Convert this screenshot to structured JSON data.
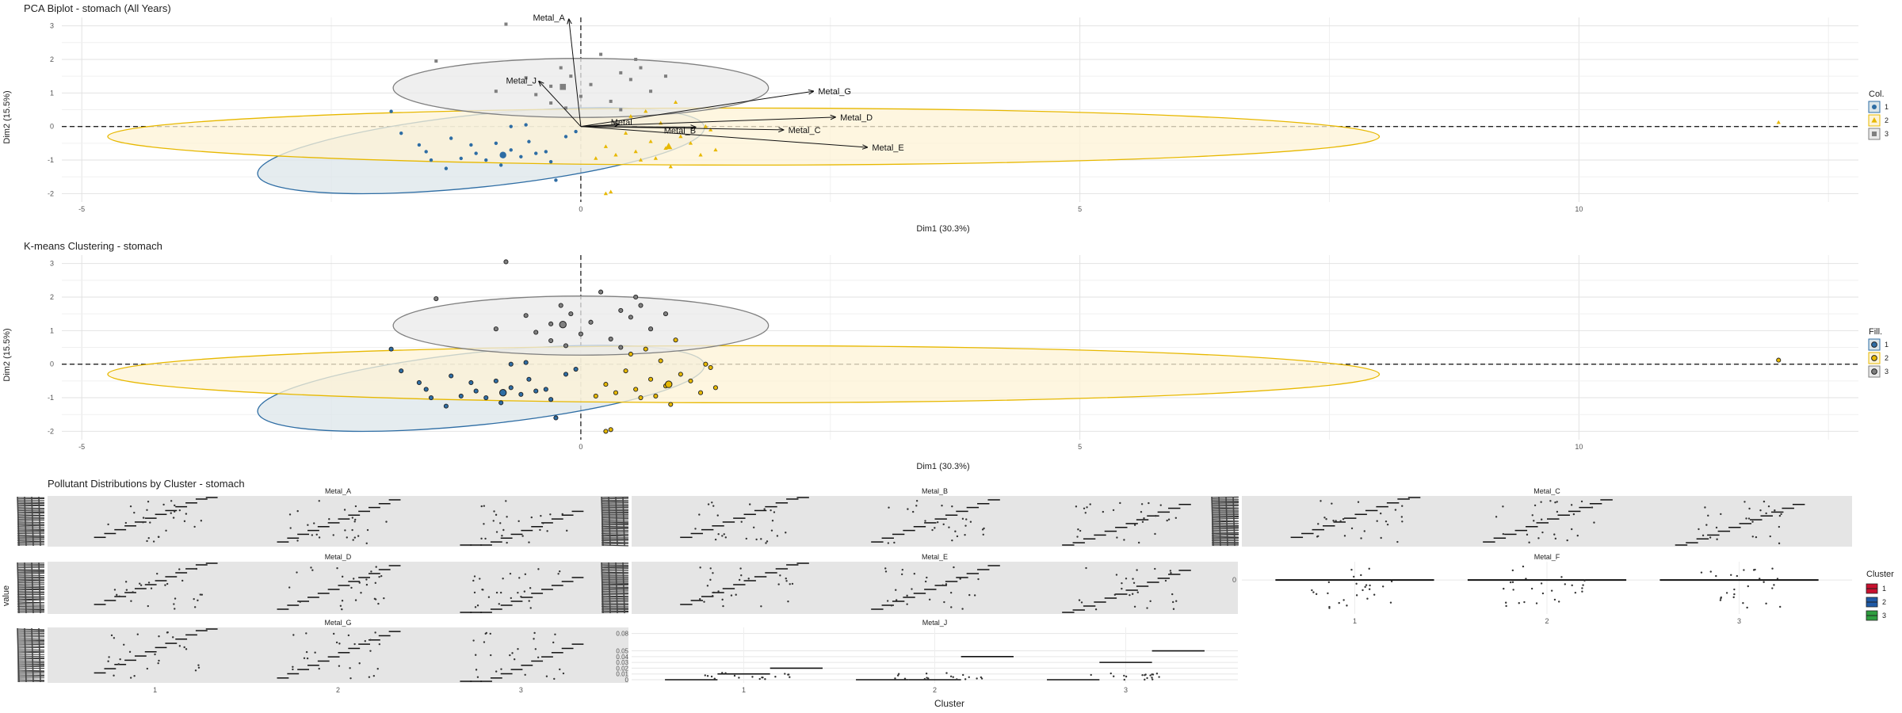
{
  "figure": {
    "colors": {
      "c1": "#2E6DA4",
      "c2": "#E7B800",
      "c3": "#7F7F7F",
      "c1_fill": "#DCE6EA",
      "c2_fill": "#FDF3D6",
      "c3_fill": "#EAEAEA",
      "box1": "#C8102E",
      "box2": "#1F5AA6",
      "box3": "#2E9E3F",
      "panel": "#E5E5E5"
    }
  },
  "chart_data": [
    {
      "type": "scatter",
      "title": "PCA Biplot - stomach (All Years)",
      "xlabel": "Dim1 (30.3%)",
      "ylabel": "Dim2 (15.5%)",
      "xlim": [
        -5.2,
        12.8
      ],
      "ylim": [
        -2.25,
        3.25
      ],
      "x_ticks": [
        -5,
        0,
        5,
        10
      ],
      "y_ticks": [
        -2,
        -1,
        0,
        1,
        2,
        3
      ],
      "legend": {
        "title": "Col.",
        "placement": "right",
        "entries": [
          "1",
          "2",
          "3"
        ],
        "shapes": [
          "circle",
          "triangle",
          "square"
        ]
      },
      "ellipses": [
        {
          "cluster": "1",
          "cx": -1.0,
          "cy": -0.72,
          "rx": 2.25,
          "ry": 1.08,
          "angle": -6
        },
        {
          "cluster": "2",
          "cx": 1.63,
          "cy": -0.3,
          "rx": 6.37,
          "ry": 0.85,
          "angle": 0
        },
        {
          "cluster": "3",
          "cx": 0.0,
          "cy": 1.15,
          "rx": 1.88,
          "ry": 0.88,
          "angle": 0
        }
      ],
      "centroids": [
        {
          "cluster": "1",
          "x": -0.78,
          "y": -0.85
        },
        {
          "cluster": "2",
          "x": 0.88,
          "y": -0.6
        },
        {
          "cluster": "3",
          "x": -0.18,
          "y": 1.18
        }
      ],
      "loadings": [
        {
          "label": "Metal_A",
          "x": -0.12,
          "y": 3.2
        },
        {
          "label": "Metal_J",
          "x": -0.42,
          "y": 1.35
        },
        {
          "label": "Metal_G",
          "x": 2.33,
          "y": 1.05
        },
        {
          "label": "Metal_D",
          "x": 2.55,
          "y": 0.28
        },
        {
          "label": "Metal_C",
          "x": 2.03,
          "y": -0.1
        },
        {
          "label": "Metal_E",
          "x": 2.87,
          "y": -0.62
        },
        {
          "label": "Metal_B",
          "x": 1.15,
          "y": -0.02
        },
        {
          "label": "Metal_",
          "x": 0.38,
          "y": 0.06
        }
      ],
      "points": [
        {
          "cluster": "1",
          "x": -1.9,
          "y": 0.45
        },
        {
          "cluster": "1",
          "x": -1.8,
          "y": -0.2
        },
        {
          "cluster": "1",
          "x": -1.55,
          "y": -0.75
        },
        {
          "cluster": "1",
          "x": -1.5,
          "y": -1.0
        },
        {
          "cluster": "1",
          "x": -1.35,
          "y": -1.25
        },
        {
          "cluster": "1",
          "x": -1.3,
          "y": -0.35
        },
        {
          "cluster": "1",
          "x": -1.2,
          "y": -0.95
        },
        {
          "cluster": "1",
          "x": -1.05,
          "y": -0.8
        },
        {
          "cluster": "1",
          "x": -0.95,
          "y": -1.0
        },
        {
          "cluster": "1",
          "x": -0.85,
          "y": -0.5
        },
        {
          "cluster": "1",
          "x": -0.8,
          "y": -1.15
        },
        {
          "cluster": "1",
          "x": -0.7,
          "y": -0.7
        },
        {
          "cluster": "1",
          "x": -0.6,
          "y": -0.9
        },
        {
          "cluster": "1",
          "x": -0.55,
          "y": 0.05
        },
        {
          "cluster": "1",
          "x": -0.45,
          "y": -0.8
        },
        {
          "cluster": "1",
          "x": -0.35,
          "y": -0.75
        },
        {
          "cluster": "1",
          "x": -0.25,
          "y": -1.6
        },
        {
          "cluster": "1",
          "x": -0.15,
          "y": -0.3
        },
        {
          "cluster": "1",
          "x": -0.05,
          "y": -0.15
        },
        {
          "cluster": "1",
          "x": -0.7,
          "y": 0.0
        },
        {
          "cluster": "1",
          "x": -1.1,
          "y": -0.55
        },
        {
          "cluster": "1",
          "x": -0.3,
          "y": -1.05
        },
        {
          "cluster": "1",
          "x": -1.62,
          "y": -0.55
        },
        {
          "cluster": "1",
          "x": -0.52,
          "y": -0.45
        },
        {
          "cluster": "2",
          "x": 0.15,
          "y": -0.95
        },
        {
          "cluster": "2",
          "x": 0.25,
          "y": -0.6
        },
        {
          "cluster": "2",
          "x": 0.35,
          "y": -0.85
        },
        {
          "cluster": "2",
          "x": 0.45,
          "y": -0.2
        },
        {
          "cluster": "2",
          "x": 0.5,
          "y": 0.3
        },
        {
          "cluster": "2",
          "x": 0.55,
          "y": -0.75
        },
        {
          "cluster": "2",
          "x": 0.6,
          "y": -1.0
        },
        {
          "cluster": "2",
          "x": 0.7,
          "y": -0.45
        },
        {
          "cluster": "2",
          "x": 0.8,
          "y": 0.1
        },
        {
          "cluster": "2",
          "x": 0.85,
          "y": -0.65
        },
        {
          "cluster": "2",
          "x": 0.9,
          "y": -1.2
        },
        {
          "cluster": "2",
          "x": 1.0,
          "y": -0.3
        },
        {
          "cluster": "2",
          "x": 1.1,
          "y": -0.5
        },
        {
          "cluster": "2",
          "x": 1.2,
          "y": -0.85
        },
        {
          "cluster": "2",
          "x": 1.3,
          "y": -0.1
        },
        {
          "cluster": "2",
          "x": 1.35,
          "y": -0.7
        },
        {
          "cluster": "2",
          "x": 1.25,
          "y": 0.0
        },
        {
          "cluster": "2",
          "x": 0.3,
          "y": -1.95
        },
        {
          "cluster": "2",
          "x": 0.25,
          "y": -2.0
        },
        {
          "cluster": "2",
          "x": 0.65,
          "y": 0.45
        },
        {
          "cluster": "2",
          "x": 0.95,
          "y": 0.72
        },
        {
          "cluster": "2",
          "x": 0.75,
          "y": -0.95
        },
        {
          "cluster": "2",
          "x": 12.0,
          "y": 0.12
        },
        {
          "cluster": "3",
          "x": -0.75,
          "y": 3.05
        },
        {
          "cluster": "3",
          "x": -1.45,
          "y": 1.95
        },
        {
          "cluster": "3",
          "x": -0.55,
          "y": 1.45
        },
        {
          "cluster": "3",
          "x": -0.45,
          "y": 0.95
        },
        {
          "cluster": "3",
          "x": -0.3,
          "y": 0.7
        },
        {
          "cluster": "3",
          "x": -0.2,
          "y": 1.75
        },
        {
          "cluster": "3",
          "x": -0.1,
          "y": 1.5
        },
        {
          "cluster": "3",
          "x": 0.0,
          "y": 0.9
        },
        {
          "cluster": "3",
          "x": 0.1,
          "y": 1.25
        },
        {
          "cluster": "3",
          "x": 0.2,
          "y": 2.15
        },
        {
          "cluster": "3",
          "x": 0.3,
          "y": 0.75
        },
        {
          "cluster": "3",
          "x": 0.4,
          "y": 1.6
        },
        {
          "cluster": "3",
          "x": 0.5,
          "y": 1.4
        },
        {
          "cluster": "3",
          "x": 0.6,
          "y": 1.75
        },
        {
          "cluster": "3",
          "x": 0.7,
          "y": 1.05
        },
        {
          "cluster": "3",
          "x": 0.85,
          "y": 1.5
        },
        {
          "cluster": "3",
          "x": 0.55,
          "y": 2.0
        },
        {
          "cluster": "3",
          "x": -0.15,
          "y": 0.55
        },
        {
          "cluster": "3",
          "x": -0.85,
          "y": 1.05
        },
        {
          "cluster": "3",
          "x": 0.4,
          "y": 0.5
        },
        {
          "cluster": "3",
          "x": -0.3,
          "y": 1.2
        }
      ]
    },
    {
      "type": "scatter",
      "title": "K-means Clustering - stomach",
      "xlabel": "Dim1 (30.3%)",
      "ylabel": "Dim2 (15.5%)",
      "xlim": [
        -5.2,
        12.8
      ],
      "ylim": [
        -2.25,
        3.25
      ],
      "x_ticks": [
        -5,
        0,
        5,
        10
      ],
      "y_ticks": [
        -2,
        -1,
        0,
        1,
        2,
        3
      ],
      "legend": {
        "title": "Fill.",
        "placement": "right",
        "entries": [
          "1",
          "2",
          "3"
        ]
      }
    },
    {
      "type": "boxplot-facets",
      "title": "Pollutant Distributions by Cluster - stomach",
      "xlabel": "Cluster",
      "ylabel": "value",
      "categories": [
        "1",
        "2",
        "3"
      ],
      "legend": {
        "title": "Cluster",
        "placement": "right",
        "entries": [
          "1",
          "2",
          "3"
        ]
      },
      "facets": [
        {
          "name": "Metal_A",
          "row": 0,
          "col": 0,
          "panel": "grey"
        },
        {
          "name": "Metal_B",
          "row": 0,
          "col": 1,
          "panel": "grey"
        },
        {
          "name": "Metal_C",
          "row": 0,
          "col": 2,
          "panel": "grey"
        },
        {
          "name": "Metal_D",
          "row": 1,
          "col": 0,
          "panel": "grey"
        },
        {
          "name": "Metal_E",
          "row": 1,
          "col": 1,
          "panel": "grey"
        },
        {
          "name": "Metal_F",
          "row": 1,
          "col": 2,
          "panel": "white",
          "y_ticks": [
            "0"
          ],
          "y_values": [
            0
          ]
        },
        {
          "name": "Metal_G",
          "row": 2,
          "col": 0,
          "panel": "grey"
        },
        {
          "name": "Metal_J",
          "row": 2,
          "col": 1,
          "panel": "white",
          "y_ticks": [
            "0",
            "0.01",
            "0.02",
            "0.03",
            "0.04",
            "0.05",
            "0.08"
          ],
          "y_values": [
            0,
            0.01,
            0.02,
            0.03,
            0.04,
            0.05,
            0.08
          ]
        }
      ]
    }
  ]
}
